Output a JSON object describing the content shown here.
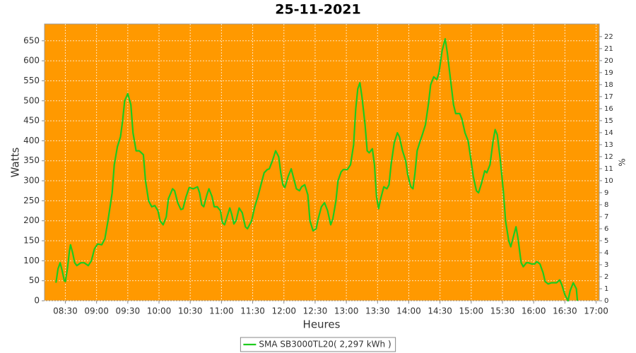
{
  "chart_data": {
    "type": "line",
    "title": "25-11-2021",
    "x_label": "Heures",
    "y_label": "Watts",
    "y2_label": "%",
    "background": "#ff9900",
    "grid": true,
    "legend": "bottom",
    "xlim": [
      "08:10",
      "17:03"
    ],
    "xticks": [
      "08:30",
      "09:00",
      "09:30",
      "10:00",
      "10:30",
      "11:00",
      "11:30",
      "12:00",
      "12:30",
      "13:00",
      "13:30",
      "14:00",
      "14:30",
      "15:00",
      "15:30",
      "16:00",
      "16:30",
      "17:00"
    ],
    "ylim": [
      0,
      692
    ],
    "yticks": [
      0,
      50,
      100,
      150,
      200,
      250,
      300,
      350,
      400,
      450,
      500,
      550,
      600,
      650
    ],
    "y2lim": [
      0,
      23.05
    ],
    "y2ticks": [
      0,
      1,
      2,
      3,
      4,
      5,
      6,
      7,
      8,
      9,
      10,
      11,
      12,
      13,
      14,
      15,
      16,
      17,
      18,
      19,
      20,
      21,
      22
    ],
    "x": [
      "08:21",
      "08:23",
      "08:25",
      "08:27",
      "08:29",
      "08:30",
      "08:32",
      "08:34",
      "08:35",
      "08:37",
      "08:39",
      "08:41",
      "08:45",
      "08:48",
      "08:52",
      "08:55",
      "08:58",
      "09:01",
      "09:05",
      "09:08",
      "09:11",
      "09:15",
      "09:17",
      "09:20",
      "09:23",
      "09:25",
      "09:27",
      "09:30",
      "09:33",
      "09:35",
      "09:38",
      "09:41",
      "09:45",
      "09:47",
      "09:50",
      "09:53",
      "09:56",
      "09:59",
      "10:01",
      "10:04",
      "10:07",
      "10:09",
      "10:13",
      "10:15",
      "10:18",
      "10:21",
      "10:23",
      "10:26",
      "10:29",
      "10:33",
      "10:37",
      "10:39",
      "10:41",
      "10:43",
      "10:46",
      "10:48",
      "10:51",
      "10:53",
      "10:56",
      "10:59",
      "11:01",
      "11:03",
      "11:06",
      "11:08",
      "11:10",
      "11:12",
      "11:14",
      "11:17",
      "11:20",
      "11:23",
      "11:25",
      "11:29",
      "11:32",
      "11:35",
      "11:38",
      "11:41",
      "11:44",
      "11:46",
      "11:49",
      "11:52",
      "11:55",
      "11:57",
      "11:59",
      "12:01",
      "12:04",
      "12:07",
      "12:09",
      "12:12",
      "12:15",
      "12:17",
      "12:20",
      "12:23",
      "12:25",
      "12:28",
      "12:31",
      "12:33",
      "12:36",
      "12:39",
      "12:42",
      "12:45",
      "12:47",
      "12:50",
      "12:52",
      "12:55",
      "12:57",
      "13:01",
      "13:04",
      "13:07",
      "13:09",
      "13:11",
      "13:13",
      "13:15",
      "13:18",
      "13:20",
      "13:22",
      "13:25",
      "13:27",
      "13:29",
      "13:31",
      "13:33",
      "13:36",
      "13:39",
      "13:41",
      "13:43",
      "13:46",
      "13:49",
      "13:51",
      "13:54",
      "13:57",
      "13:59",
      "14:02",
      "14:04",
      "14:06",
      "14:08",
      "14:11",
      "14:13",
      "14:16",
      "14:19",
      "14:21",
      "14:24",
      "14:27",
      "14:29",
      "14:32",
      "14:35",
      "14:37",
      "14:40",
      "14:43",
      "14:45",
      "14:49",
      "14:51",
      "14:54",
      "14:57",
      "14:59",
      "15:02",
      "15:05",
      "15:07",
      "15:10",
      "15:13",
      "15:15",
      "15:18",
      "15:21",
      "15:23",
      "15:25",
      "15:28",
      "15:31",
      "15:33",
      "15:36",
      "15:38",
      "15:41",
      "15:43",
      "15:45",
      "15:48",
      "15:50",
      "15:53",
      "15:55",
      "15:58",
      "16:01",
      "16:03",
      "16:06",
      "16:09",
      "16:11",
      "16:14",
      "16:17",
      "16:19",
      "16:22",
      "16:25",
      "16:27",
      "16:30",
      "16:33",
      "16:35",
      "16:38",
      "16:41",
      "16:42"
    ],
    "series": [
      {
        "name": "SMA SB3000TL20( 2,297 kWh )",
        "color": "#1ecb1e",
        "values": [
          45,
          80,
          95,
          75,
          50,
          48,
          80,
          125,
          140,
          120,
          95,
          88,
          95,
          95,
          88,
          100,
          130,
          142,
          140,
          155,
          200,
          270,
          340,
          385,
          410,
          450,
          500,
          518,
          490,
          420,
          375,
          375,
          365,
          300,
          250,
          235,
          238,
          225,
          200,
          190,
          210,
          255,
          280,
          275,
          245,
          228,
          230,
          260,
          283,
          280,
          285,
          270,
          240,
          235,
          265,
          280,
          260,
          235,
          235,
          225,
          195,
          190,
          215,
          232,
          215,
          192,
          200,
          232,
          220,
          185,
          180,
          200,
          235,
          260,
          290,
          320,
          328,
          330,
          350,
          375,
          360,
          320,
          290,
          283,
          310,
          330,
          310,
          280,
          275,
          285,
          290,
          265,
          200,
          175,
          180,
          205,
          235,
          245,
          225,
          190,
          205,
          250,
          300,
          322,
          328,
          328,
          340,
          390,
          480,
          530,
          545,
          510,
          440,
          375,
          370,
          380,
          340,
          260,
          230,
          255,
          285,
          280,
          290,
          340,
          395,
          420,
          410,
          375,
          350,
          315,
          285,
          280,
          320,
          375,
          400,
          415,
          440,
          495,
          540,
          560,
          553,
          570,
          625,
          655,
          620,
          555,
          490,
          468,
          468,
          455,
          420,
          400,
          365,
          310,
          275,
          270,
          295,
          325,
          320,
          340,
          400,
          428,
          415,
          350,
          270,
          200,
          150,
          135,
          165,
          185,
          155,
          95,
          85,
          95,
          95,
          92,
          92,
          98,
          92,
          70,
          48,
          42,
          45,
          45,
          45,
          52,
          40,
          15,
          0,
          25,
          45,
          30,
          0
        ]
      }
    ]
  }
}
